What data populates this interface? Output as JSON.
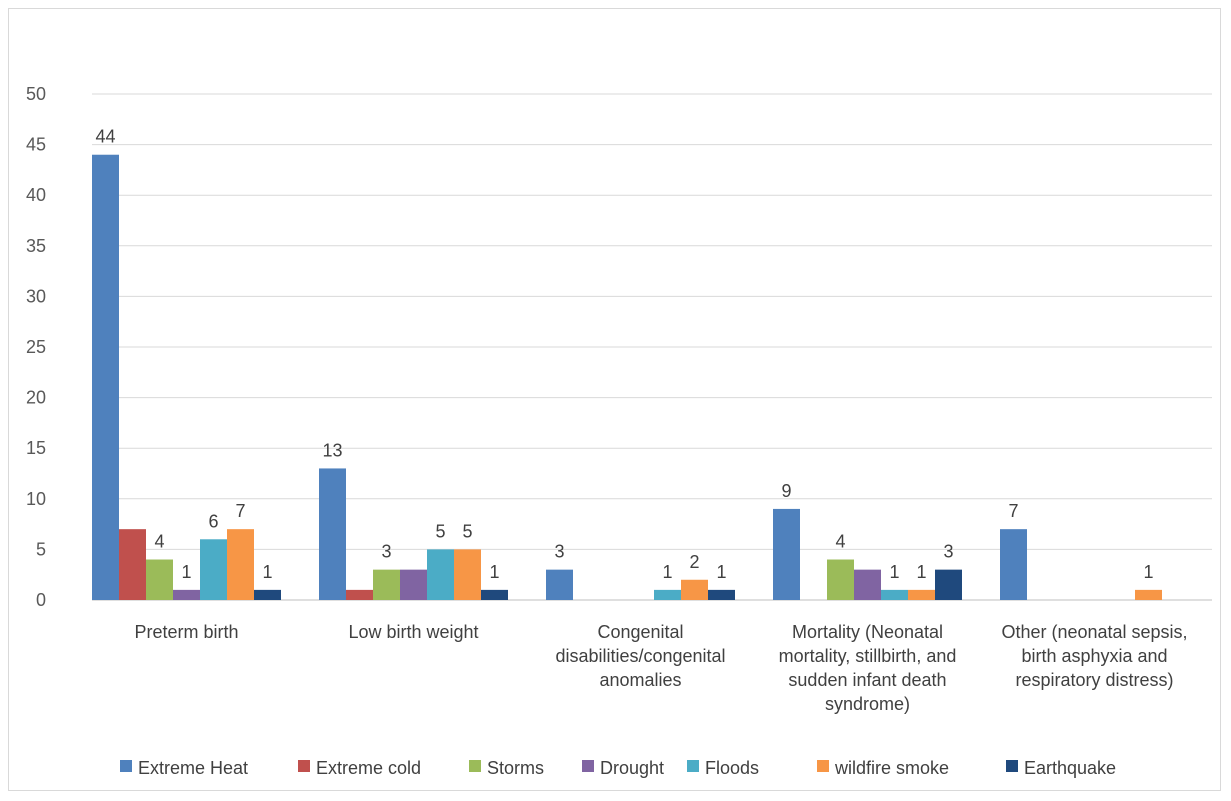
{
  "chart_data": {
    "type": "bar",
    "title": "",
    "xlabel": "",
    "ylabel": "",
    "ylim": [
      0,
      50
    ],
    "yticks": [
      0,
      5,
      10,
      15,
      20,
      25,
      30,
      35,
      40,
      45,
      50
    ],
    "grid": true,
    "legend_position": "bottom",
    "categories": [
      [
        "Preterm birth"
      ],
      [
        "Low birth weight"
      ],
      [
        "Congenital",
        "disabilities/congenital",
        "anomalies"
      ],
      [
        "Mortality (Neonatal",
        "mortality, stillbirth, and",
        "sudden infant death",
        "syndrome)"
      ],
      [
        "Other (neonatal sepsis,",
        "birth asphyxia and",
        "respiratory distress)"
      ]
    ],
    "series": [
      {
        "name": "Extreme Heat",
        "color": "#4F81BD",
        "values": [
          44,
          13,
          3,
          9,
          7
        ]
      },
      {
        "name": "Extreme cold",
        "color": "#C0504D",
        "values": [
          7,
          1,
          0,
          0,
          0
        ]
      },
      {
        "name": "Storms",
        "color": "#9BBB59",
        "values": [
          4,
          3,
          0,
          4,
          0
        ]
      },
      {
        "name": "Drought",
        "color": "#8064A2",
        "values": [
          1,
          3,
          0,
          3,
          0
        ]
      },
      {
        "name": "Floods",
        "color": "#4BACC6",
        "values": [
          6,
          5,
          1,
          1,
          0
        ]
      },
      {
        "name": "wildfire smoke",
        "color": "#F79646",
        "values": [
          7,
          5,
          2,
          1,
          1
        ]
      },
      {
        "name": "Earthquake",
        "color": "#1F497D",
        "values": [
          1,
          1,
          1,
          3,
          0
        ]
      }
    ],
    "data_labels": [
      [
        "44",
        "",
        "4",
        "1",
        "6",
        "7",
        "1"
      ],
      [
        "13",
        "",
        "3",
        "",
        "5",
        "5",
        "1"
      ],
      [
        "3",
        "",
        "",
        "",
        "1",
        "2",
        "1"
      ],
      [
        "9",
        "",
        "4",
        "",
        "1",
        "1",
        "3"
      ],
      [
        "7",
        "",
        "",
        "",
        "",
        "1",
        ""
      ]
    ]
  }
}
